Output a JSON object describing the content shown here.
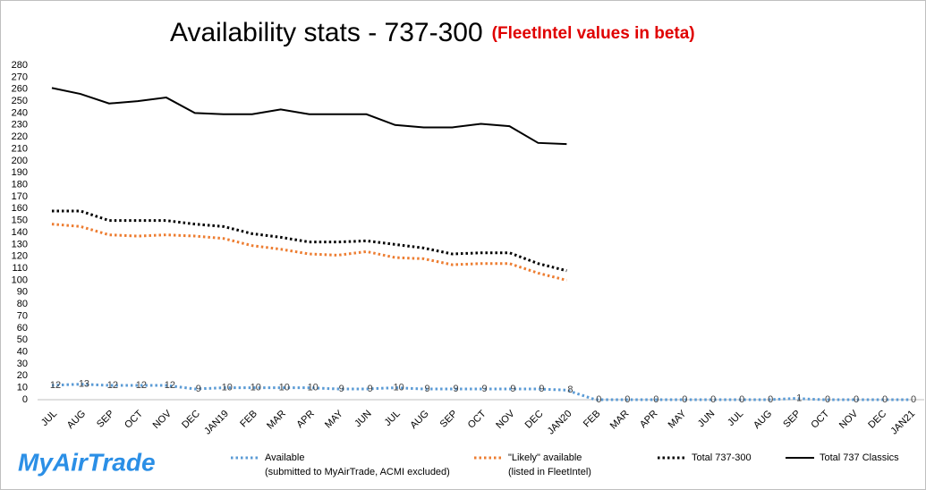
{
  "chart_data": {
    "type": "line",
    "title": "Availability  stats - 737-300",
    "subtitle": "(FleetIntel values in beta)",
    "logo": "MyAirTrade",
    "categories": [
      "JUL",
      "AUG",
      "SEP",
      "OCT",
      "NOV",
      "DEC",
      "JAN19",
      "FEB",
      "MAR",
      "APR",
      "MAY",
      "JUN",
      "JUL",
      "AUG",
      "SEP",
      "OCT",
      "NOV",
      "DEC",
      "JAN20",
      "FEB",
      "MAR",
      "APR",
      "MAY",
      "JUN",
      "JUL",
      "AUG",
      "SEP",
      "OCT",
      "NOV",
      "DEC",
      "JAN21"
    ],
    "ylim": [
      0,
      280
    ],
    "yticks": [
      0,
      10,
      20,
      30,
      40,
      50,
      60,
      70,
      80,
      90,
      100,
      110,
      120,
      130,
      140,
      150,
      160,
      170,
      180,
      190,
      200,
      210,
      220,
      230,
      240,
      250,
      260,
      270,
      280
    ],
    "grid": false,
    "legend": "bottom",
    "series": [
      {
        "name": "Available",
        "note": "(submitted to MyAirTrade, ACMI excluded)",
        "color": "#5b9bd5",
        "dotted": true,
        "data_labels": true,
        "values": [
          12,
          13,
          12,
          12,
          12,
          9,
          10,
          10,
          10,
          10,
          9,
          9,
          10,
          9,
          9,
          9,
          9,
          9,
          8,
          0,
          0,
          0,
          0,
          0,
          0,
          0,
          1,
          0,
          0,
          0,
          0
        ]
      },
      {
        "name": "\"Likely\" available",
        "note": "(listed in FleetIntel)",
        "color": "#ed7d31",
        "dotted": true,
        "data_labels": false,
        "values": [
          147,
          145,
          138,
          137,
          138,
          137,
          135,
          129,
          126,
          122,
          121,
          124,
          119,
          118,
          113,
          114,
          114,
          106,
          100,
          null,
          null,
          null,
          null,
          null,
          null,
          null,
          null,
          null,
          null,
          null,
          null
        ]
      },
      {
        "name": "Total 737-300",
        "color": "#000000",
        "dotted": true,
        "data_labels": false,
        "values": [
          158,
          158,
          150,
          150,
          150,
          147,
          145,
          139,
          136,
          132,
          132,
          133,
          130,
          127,
          122,
          123,
          123,
          114,
          108,
          null,
          null,
          null,
          null,
          null,
          null,
          null,
          null,
          null,
          null,
          null,
          null
        ]
      },
      {
        "name": "Total 737 Classics",
        "color": "#000000",
        "dotted": false,
        "data_labels": false,
        "values": [
          261,
          256,
          248,
          250,
          253,
          240,
          239,
          239,
          243,
          239,
          239,
          239,
          230,
          228,
          228,
          231,
          229,
          215,
          214,
          null,
          null,
          null,
          null,
          null,
          null,
          null,
          null,
          null,
          null,
          null,
          null
        ]
      }
    ]
  }
}
